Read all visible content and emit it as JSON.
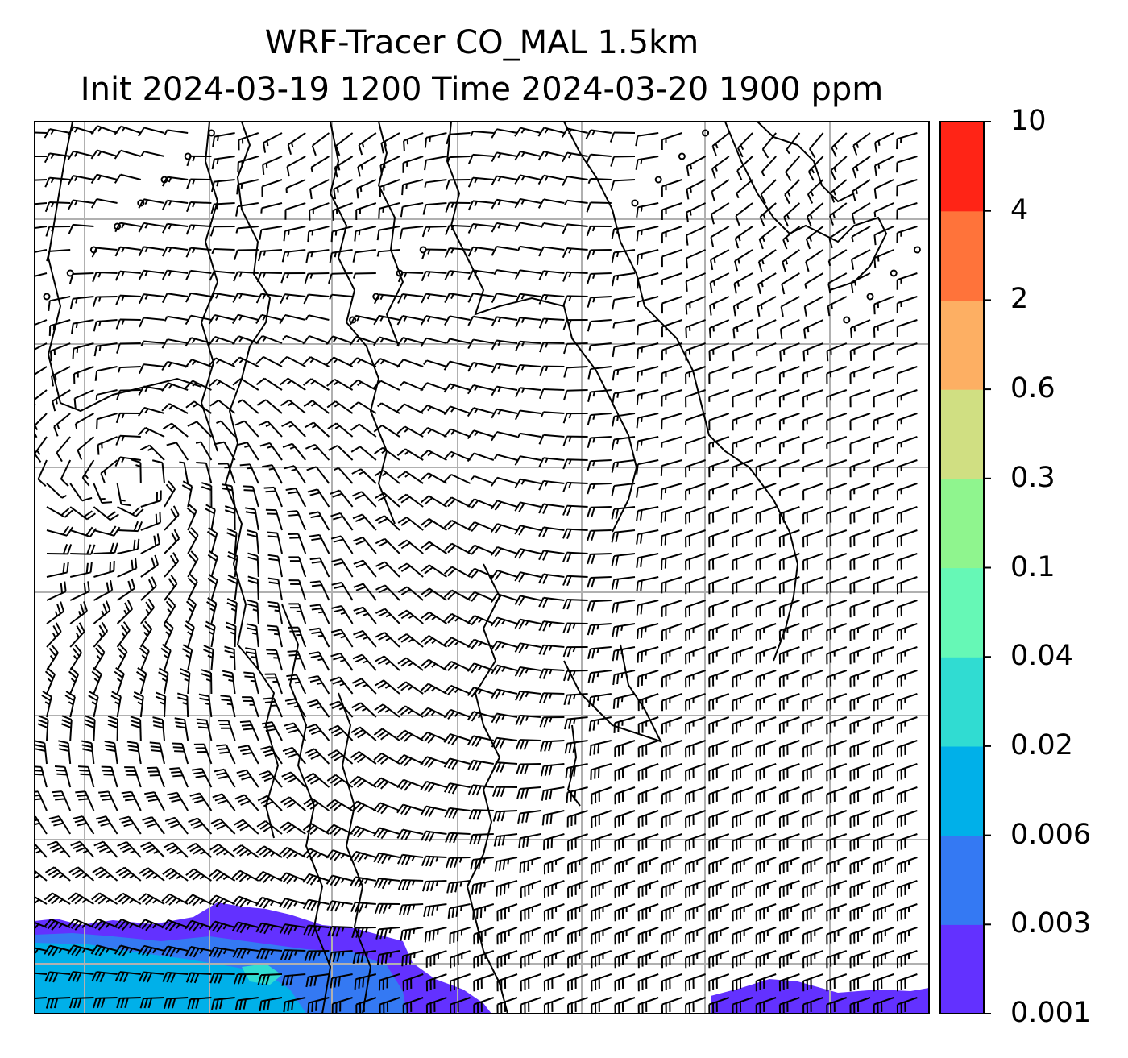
{
  "title": {
    "line1": "WRF-Tracer CO_MAL 1.5km",
    "line2": "Init 2024-03-19 1200 Time 2024-03-20 1900 ppm"
  },
  "colorbar": {
    "levels": [
      "0.001",
      "0.003",
      "0.006",
      "0.02",
      "0.04",
      "0.1",
      "0.3",
      "0.6",
      "2",
      "4",
      "10"
    ],
    "colors": [
      "#6331ff",
      "#3479f3",
      "#00b0e9",
      "#30dcd2",
      "#66f8b6",
      "#8ff58e",
      "#d0df82",
      "#fdaf63",
      "#ff733a",
      "#ff2416"
    ]
  },
  "map": {
    "plume_colors": {
      "lowest": "#6331ff",
      "low": "#3479f3",
      "mid": "#00b0e9",
      "highlight": "#30dcd2"
    },
    "barb_color": "#000000",
    "coastline_color": "#000000",
    "grid_color": "#b0b0b0"
  }
}
